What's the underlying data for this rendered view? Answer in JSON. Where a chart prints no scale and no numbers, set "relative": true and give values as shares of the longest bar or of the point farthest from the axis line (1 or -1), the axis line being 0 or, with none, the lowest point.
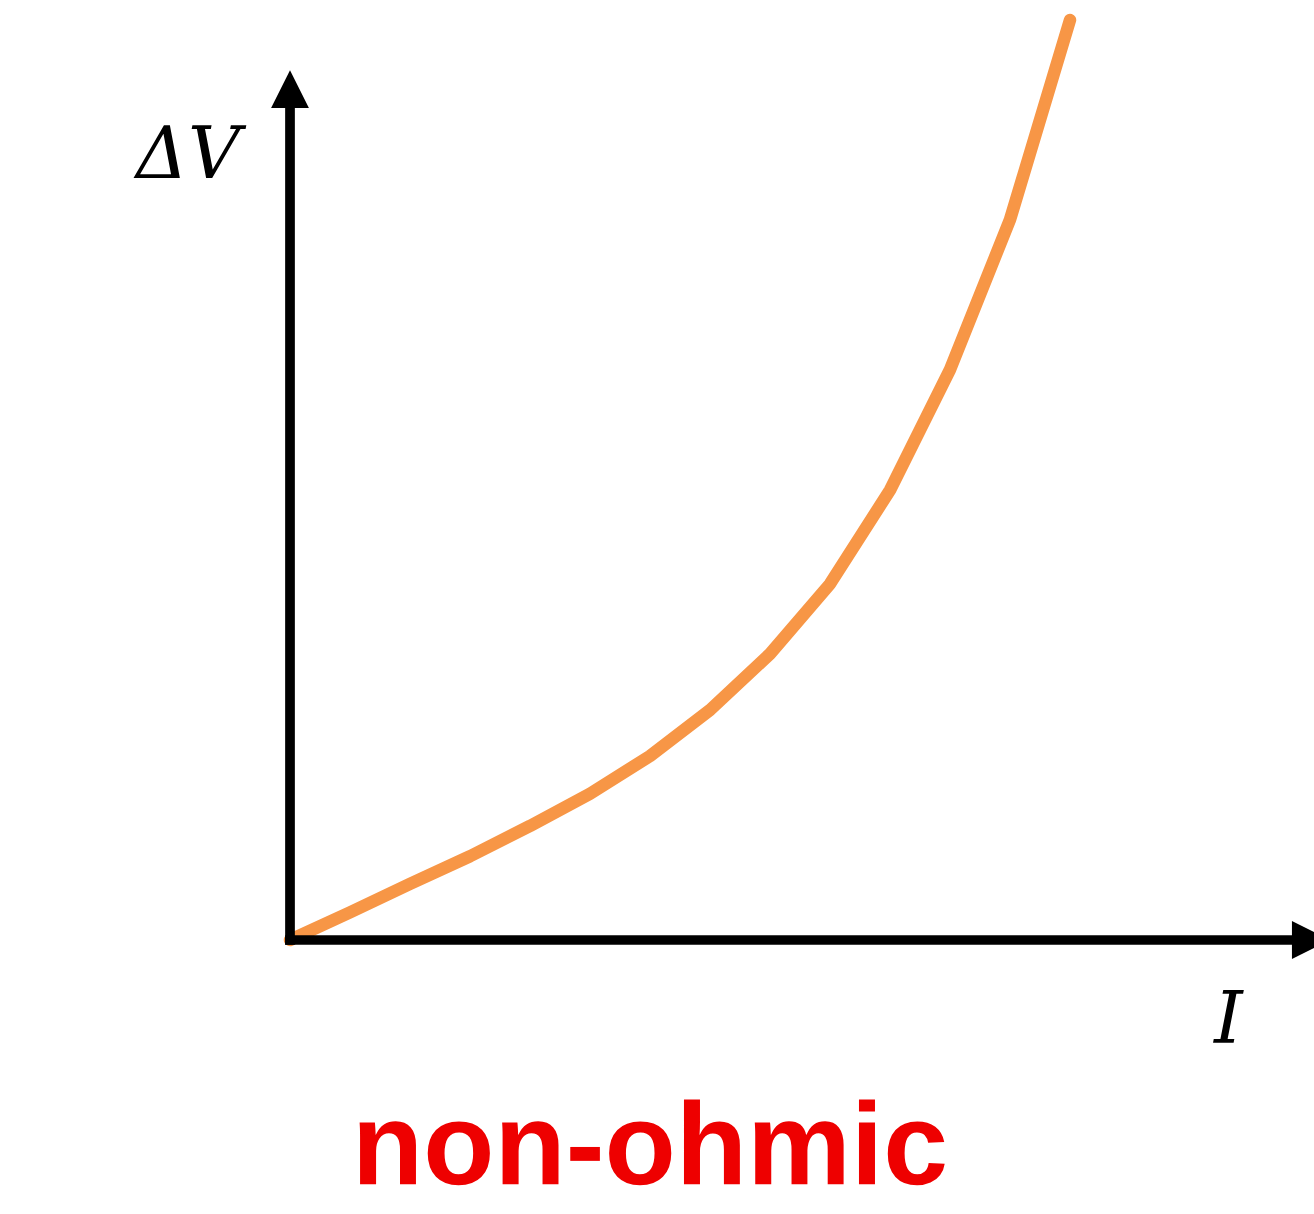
{
  "chart_data": {
    "type": "line",
    "relative": true,
    "xlabel": "I",
    "ylabel": "ΔV",
    "annotations": [
      "non-ohmic"
    ],
    "categories": [
      null,
      null,
      null,
      null,
      null,
      null,
      null,
      null,
      null,
      null,
      null,
      null,
      null,
      null
    ],
    "series": [
      {
        "color": "#f79646",
        "values": [
          0,
          0.03,
          0.061,
          0.091,
          0.124,
          0.159,
          0.2,
          0.25,
          0.311,
          0.387,
          0.489,
          0.62,
          0.783,
          1
        ]
      }
    ]
  }
}
